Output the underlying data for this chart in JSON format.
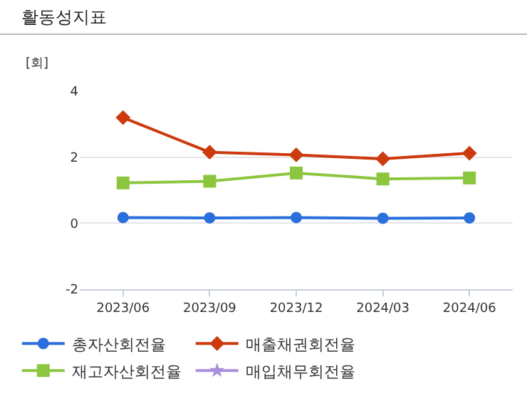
{
  "chart_data": {
    "type": "line",
    "title": "활동성지표",
    "ylabel": "[회]",
    "categories": [
      "2023/06",
      "2023/09",
      "2023/12",
      "2024/03",
      "2024/06"
    ],
    "series": [
      {
        "name": "총자산회전율",
        "color": "#2a6fdb",
        "marker": "circle",
        "values": [
          0.17,
          0.16,
          0.17,
          0.15,
          0.16
        ]
      },
      {
        "name": "매출채권회전율",
        "color": "#cc3a0e",
        "marker": "diamond",
        "values": [
          3.2,
          2.15,
          2.07,
          1.95,
          2.12
        ]
      },
      {
        "name": "재고자산회전율",
        "color": "#8cc63e",
        "marker": "square",
        "values": [
          1.22,
          1.27,
          1.52,
          1.34,
          1.37
        ]
      },
      {
        "name": "매입채무회전율",
        "color": "#a98fdc",
        "marker": "star",
        "values": [
          null,
          null,
          null,
          null,
          null
        ]
      }
    ],
    "ylim": [
      -2,
      4
    ],
    "yticks": [
      -2,
      0,
      2,
      4
    ],
    "grid": "y",
    "legend": "bottom"
  }
}
